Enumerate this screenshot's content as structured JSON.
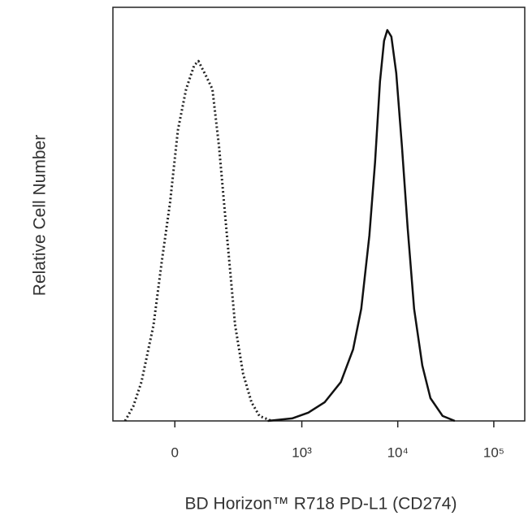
{
  "chart_data": {
    "type": "line",
    "x_label": "BD Horizon™ R718 PD-L1 (CD274)",
    "y_label": "Relative Cell Number",
    "xscale": "biexponential",
    "xlim": [
      -200,
      210000
    ],
    "ylim": [
      0,
      100
    ],
    "xticks": [
      0,
      {
        "value": 1000,
        "label": "10³"
      },
      {
        "value": 10000,
        "label": "10⁴"
      },
      {
        "value": 100000,
        "label": "10⁵"
      }
    ],
    "series": [
      {
        "color": "#222222",
        "style": "dotted",
        "x": [
          -143,
          -112,
          -85,
          -51,
          -30,
          -11,
          7,
          26,
          46,
          57,
          80,
          98,
          121,
          153,
          191,
          236,
          292,
          357,
          482
        ],
        "values": [
          0,
          3.5,
          9.4,
          23.2,
          38.9,
          52.7,
          70.3,
          80.2,
          86.0,
          87.0,
          83.1,
          80.2,
          66.4,
          44.8,
          23.2,
          11.4,
          4.5,
          1.2,
          0
        ]
      },
      {
        "color": "#111111",
        "style": "solid",
        "x": [
          437,
          791,
          1170,
          1729,
          2555,
          3427,
          4167,
          5063,
          5804,
          6525,
          7193,
          7777,
          8576,
          9640,
          11050,
          12655,
          14810,
          18000,
          21870,
          29300,
          39280
        ],
        "values": [
          0,
          0.6,
          2.0,
          4.5,
          9.4,
          17.3,
          27.1,
          44.8,
          62.5,
          82.1,
          91.9,
          94.5,
          92.9,
          84.1,
          66.4,
          46.8,
          27.1,
          13.4,
          5.5,
          1.2,
          0
        ]
      }
    ]
  }
}
